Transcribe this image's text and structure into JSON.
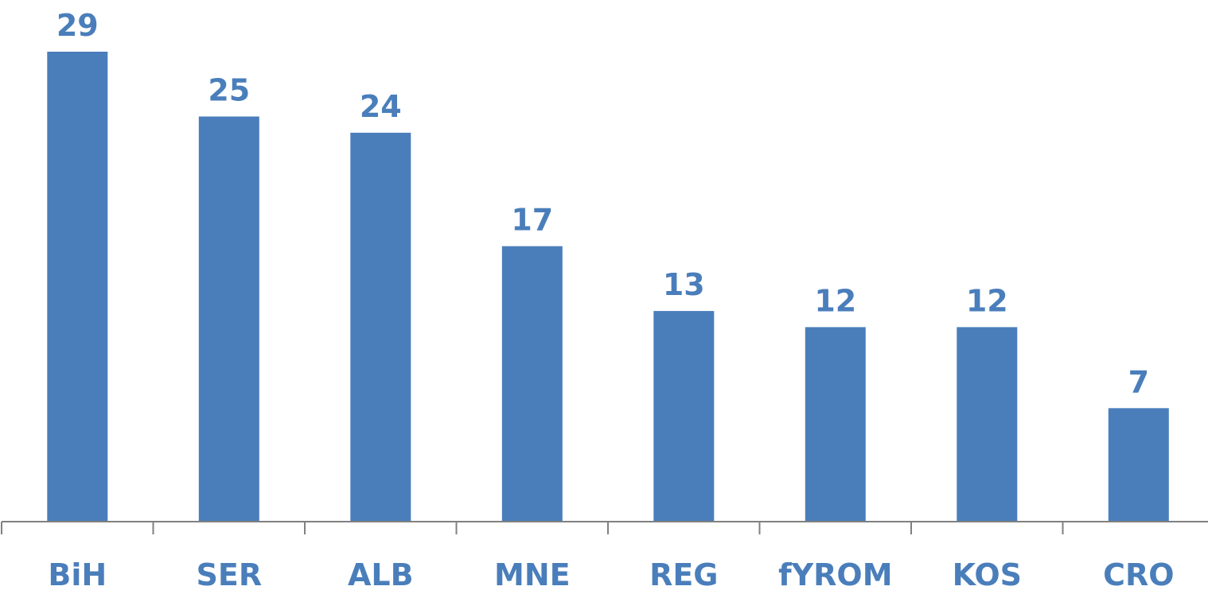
{
  "chart_data": {
    "type": "bar",
    "title": "",
    "xlabel": "",
    "ylabel": "",
    "categories": [
      "BiH",
      "SER",
      "ALB",
      "MNE",
      "REG",
      "fYROM",
      "KOS",
      "CRO"
    ],
    "values": [
      29,
      25,
      24,
      17,
      13,
      12,
      12,
      7
    ],
    "ylim": [
      0,
      29
    ],
    "grid": false,
    "legend": "none",
    "data_labels": true,
    "colors": {
      "bar": "#4A7EBB",
      "label": "#4A7EBB",
      "axis": "#808080"
    }
  }
}
